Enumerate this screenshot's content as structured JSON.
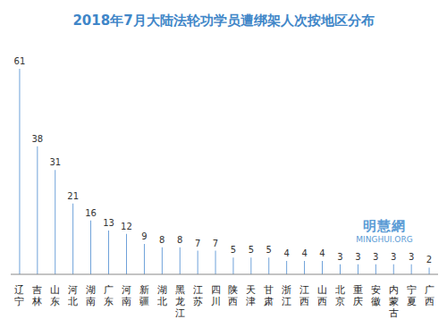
{
  "chart_data": {
    "type": "bar",
    "title": "2018年7月大陆法轮功学员遭绑架人次按地区分布",
    "categories": [
      "辽宁",
      "吉林",
      "山东",
      "河北",
      "湖南",
      "广东",
      "河南",
      "新疆",
      "湖北",
      "黑龙江",
      "江苏",
      "四川",
      "陕西",
      "天津",
      "甘肃",
      "浙江",
      "江西",
      "山西",
      "北京",
      "重庆",
      "安徽",
      "内蒙古",
      "宁夏",
      "广西"
    ],
    "values": [
      61,
      38,
      31,
      21,
      16,
      13,
      12,
      9,
      8,
      8,
      7,
      7,
      5,
      5,
      5,
      4,
      4,
      4,
      3,
      3,
      3,
      3,
      3,
      2
    ],
    "color": "#4a8ad0",
    "ylim": [
      0,
      65
    ],
    "grid": false,
    "data_labels": true,
    "tick_labels": "x",
    "annotations": [
      "明慧網",
      "MINGHUI.ORG"
    ]
  }
}
